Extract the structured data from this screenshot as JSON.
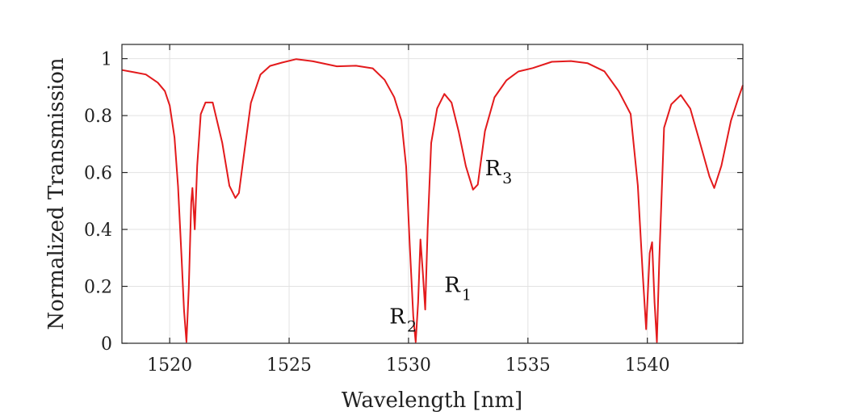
{
  "chart_data": {
    "type": "line",
    "xlabel": "Wavelength [nm]",
    "ylabel": "Normalized Transmission",
    "xlim": [
      1518,
      1544
    ],
    "ylim": [
      0,
      1.05
    ],
    "xticks": [
      1520,
      1525,
      1530,
      1535,
      1540
    ],
    "yticks": [
      0,
      0.2,
      0.4,
      0.6,
      0.8,
      1
    ],
    "ytick_labels": [
      "0",
      "0.2",
      "0.4",
      "0.6",
      "0.8",
      "1"
    ],
    "grid": true,
    "line_color": "#e31a1c",
    "series": [
      {
        "x": [
          1518.0,
          1518.5,
          1519.0,
          1519.5,
          1519.8,
          1520.0,
          1520.2,
          1520.35,
          1520.5,
          1520.6,
          1520.7,
          1520.8,
          1520.9,
          1520.95,
          1521.0,
          1521.05,
          1521.15,
          1521.3,
          1521.5,
          1521.8,
          1522.2,
          1522.5,
          1522.75,
          1522.9,
          1523.1,
          1523.4,
          1523.8,
          1524.2,
          1524.7,
          1525.3,
          1526.0,
          1527.0,
          1527.8,
          1528.5,
          1529.0,
          1529.4,
          1529.7,
          1529.9,
          1530.05,
          1530.2,
          1530.3,
          1530.4,
          1530.5,
          1530.6,
          1530.7,
          1530.8,
          1530.95,
          1531.2,
          1531.5,
          1531.8,
          1532.1,
          1532.4,
          1532.7,
          1532.9,
          1533.2,
          1533.6,
          1534.1,
          1534.6,
          1535.2,
          1536.0,
          1536.8,
          1537.5,
          1538.2,
          1538.8,
          1539.3,
          1539.6,
          1539.8,
          1539.95,
          1540.1,
          1540.2,
          1540.3,
          1540.4,
          1540.5,
          1540.7,
          1541.0,
          1541.4,
          1541.8,
          1542.2,
          1542.6,
          1542.8,
          1543.1,
          1543.5,
          1543.8,
          1544.0
        ],
        "y": [
          0.96,
          0.95,
          0.94,
          0.91,
          0.88,
          0.83,
          0.72,
          0.55,
          0.3,
          0.12,
          0.01,
          0.2,
          0.5,
          0.55,
          0.48,
          0.4,
          0.62,
          0.8,
          0.84,
          0.84,
          0.7,
          0.55,
          0.51,
          0.53,
          0.66,
          0.85,
          0.95,
          0.98,
          0.99,
          1.0,
          0.99,
          0.97,
          0.97,
          0.96,
          0.92,
          0.86,
          0.78,
          0.62,
          0.35,
          0.1,
          0.01,
          0.15,
          0.37,
          0.25,
          0.12,
          0.4,
          0.7,
          0.82,
          0.87,
          0.84,
          0.74,
          0.62,
          0.54,
          0.56,
          0.75,
          0.87,
          0.93,
          0.96,
          0.97,
          0.99,
          0.99,
          0.98,
          0.95,
          0.88,
          0.8,
          0.55,
          0.25,
          0.05,
          0.32,
          0.36,
          0.15,
          0.01,
          0.3,
          0.76,
          0.84,
          0.87,
          0.82,
          0.7,
          0.58,
          0.54,
          0.62,
          0.78,
          0.86,
          0.91
        ]
      }
    ],
    "annotations": [
      {
        "base": "R",
        "sub": "1",
        "x": 1531.5,
        "y": 0.18
      },
      {
        "base": "R",
        "sub": "2",
        "x": 1529.2,
        "y": 0.07
      },
      {
        "base": "R",
        "sub": "3",
        "x": 1533.2,
        "y": 0.59
      }
    ]
  }
}
